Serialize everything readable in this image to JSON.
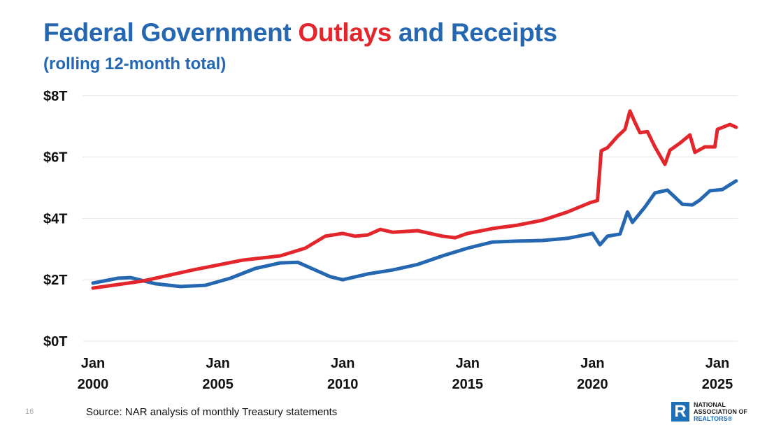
{
  "chart_data": {
    "type": "line",
    "title_parts": [
      "Federal Government ",
      "Outlays",
      " and Receipts"
    ],
    "subtitle": "(rolling 12-month total)",
    "ylim": [
      0,
      8
    ],
    "xlim": [
      2000,
      2025.75
    ],
    "y_ticks": [
      {
        "value": 0,
        "label": "$0T"
      },
      {
        "value": 2,
        "label": "$2T"
      },
      {
        "value": 4,
        "label": "$4T"
      },
      {
        "value": 6,
        "label": "$6T"
      },
      {
        "value": 8,
        "label": "$8T"
      }
    ],
    "x_ticks": [
      {
        "value": 2000,
        "label": [
          "Jan",
          "2000"
        ]
      },
      {
        "value": 2005,
        "label": [
          "Jan",
          "2005"
        ]
      },
      {
        "value": 2010,
        "label": [
          "Jan",
          "2010"
        ]
      },
      {
        "value": 2015,
        "label": [
          "Jan",
          "2015"
        ]
      },
      {
        "value": 2020,
        "label": [
          "Jan",
          "2020"
        ]
      },
      {
        "value": 2025,
        "label": [
          "Jan",
          "2025"
        ]
      }
    ],
    "grid": "horizontal",
    "series": [
      {
        "name": "Outlays",
        "color": "#e3262c",
        "x": [
          2000,
          2002,
          2004,
          2006,
          2007.5,
          2008.5,
          2009.3,
          2010,
          2010.5,
          2011,
          2011.5,
          2012,
          2013,
          2014,
          2014.5,
          2015,
          2016,
          2017,
          2018,
          2019,
          2019.9,
          2020.2,
          2020.35,
          2020.6,
          2021,
          2021.3,
          2021.5,
          2021.7,
          2021.9,
          2022.2,
          2022.5,
          2022.9,
          2023.1,
          2023.5,
          2023.9,
          2024.1,
          2024.5,
          2024.9,
          2025.0,
          2025.5,
          2025.75
        ],
        "y": [
          1.73,
          1.96,
          2.32,
          2.64,
          2.78,
          3.03,
          3.42,
          3.51,
          3.42,
          3.46,
          3.64,
          3.55,
          3.6,
          3.42,
          3.37,
          3.51,
          3.67,
          3.78,
          3.94,
          4.21,
          4.51,
          4.58,
          6.2,
          6.3,
          6.67,
          6.9,
          7.5,
          7.13,
          6.79,
          6.83,
          6.33,
          5.76,
          6.22,
          6.45,
          6.72,
          6.15,
          6.33,
          6.33,
          6.9,
          7.06,
          6.97
        ]
      },
      {
        "name": "Receipts",
        "color": "#2567b1",
        "x": [
          2000,
          2001,
          2001.5,
          2002.5,
          2003.5,
          2004.5,
          2005.5,
          2006.5,
          2007.5,
          2008.2,
          2009,
          2009.5,
          2010,
          2011,
          2012,
          2013,
          2014,
          2015,
          2016,
          2017,
          2018,
          2019,
          2020,
          2020.3,
          2020.6,
          2021.1,
          2021.4,
          2021.6,
          2022.1,
          2022.5,
          2023,
          2023.6,
          2024,
          2024.3,
          2024.7,
          2025.2,
          2025.75
        ],
        "y": [
          1.89,
          2.05,
          2.07,
          1.87,
          1.78,
          1.82,
          2.05,
          2.37,
          2.55,
          2.57,
          2.28,
          2.1,
          2.0,
          2.19,
          2.32,
          2.5,
          2.78,
          3.03,
          3.23,
          3.26,
          3.28,
          3.35,
          3.51,
          3.14,
          3.42,
          3.49,
          4.21,
          3.87,
          4.37,
          4.83,
          4.92,
          4.46,
          4.44,
          4.6,
          4.9,
          4.94,
          5.22
        ]
      }
    ]
  },
  "footer": {
    "page_number": "16",
    "source": "Source: NAR analysis of monthly Treasury statements",
    "logo_text": [
      "NATIONAL",
      "ASSOCIATION OF",
      "REALTORS®"
    ],
    "logo_mark": "R"
  }
}
